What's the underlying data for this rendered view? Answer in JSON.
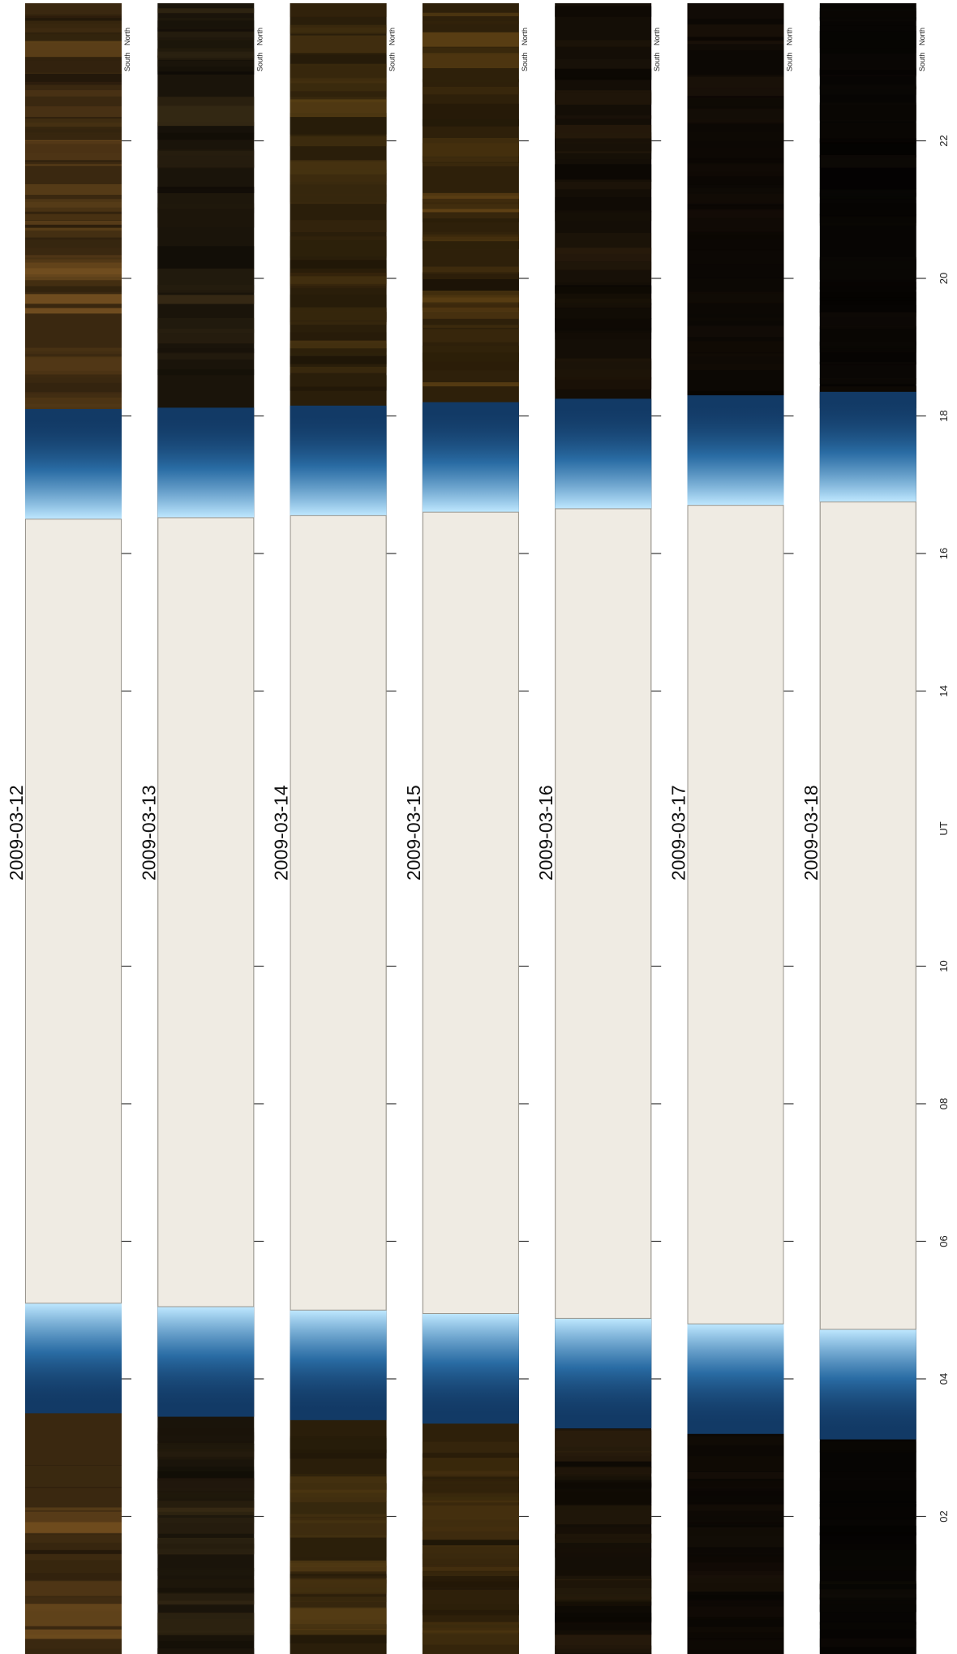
{
  "chart_data": {
    "type": "heatmap",
    "title": "",
    "xlabel": "UT",
    "ylabel": "",
    "x_axis": {
      "range": [
        0,
        24
      ],
      "unit": "UT hours",
      "ticks": [
        2,
        4,
        6,
        8,
        10,
        14,
        16,
        18,
        20,
        22
      ],
      "tick_labels": [
        "02",
        "04",
        "06",
        "08",
        "10",
        "14",
        "16",
        "18",
        "20",
        "22"
      ],
      "center_label": "UT"
    },
    "y_axis_labels": {
      "top": "North",
      "bottom": "South"
    },
    "daylight_color": "#efebe3",
    "twilight_color": "#123a66",
    "panels": [
      {
        "date": "2009-03-12",
        "morning_edge": 5.1,
        "evening_edge": 16.5,
        "night_tone": "#3a2810"
      },
      {
        "date": "2009-03-13",
        "morning_edge": 5.05,
        "evening_edge": 16.52,
        "night_tone": "#1a140a"
      },
      {
        "date": "2009-03-14",
        "morning_edge": 5.0,
        "evening_edge": 16.55,
        "night_tone": "#2a1e0a"
      },
      {
        "date": "2009-03-15",
        "morning_edge": 4.95,
        "evening_edge": 16.6,
        "night_tone": "#2e200a"
      },
      {
        "date": "2009-03-16",
        "morning_edge": 4.88,
        "evening_edge": 16.65,
        "night_tone": "#140e06"
      },
      {
        "date": "2009-03-17",
        "morning_edge": 4.8,
        "evening_edge": 16.7,
        "night_tone": "#0c0804"
      },
      {
        "date": "2009-03-18",
        "morning_edge": 4.72,
        "evening_edge": 16.75,
        "night_tone": "#070503"
      }
    ]
  }
}
